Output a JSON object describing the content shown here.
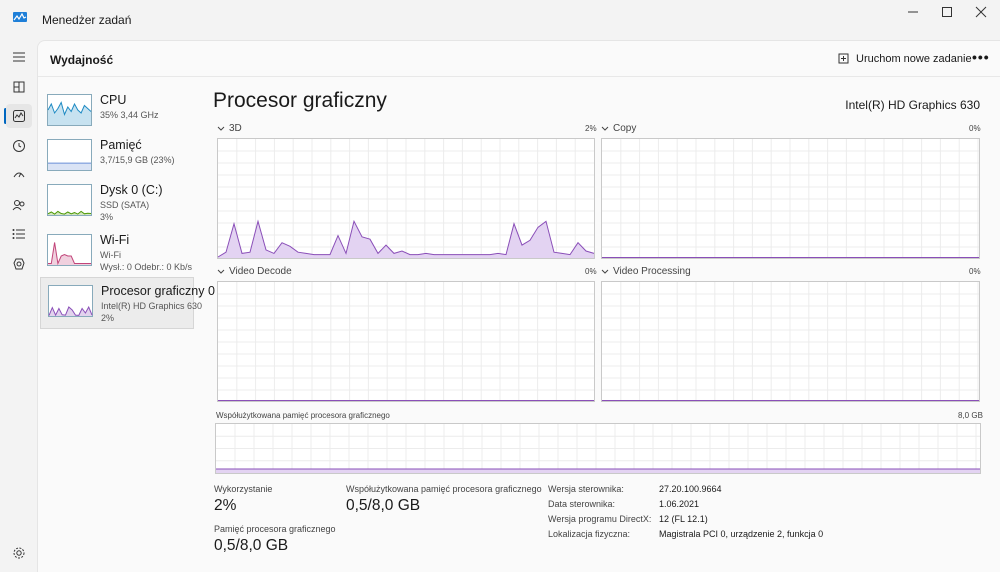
{
  "window": {
    "title": "Menedżer zadań",
    "minimize_glyph": "─",
    "maximize_glyph": "☐",
    "close_glyph": "✕"
  },
  "rail": {
    "items": [
      {
        "icon": "hamburger-menu-icon"
      },
      {
        "icon": "processes-icon"
      },
      {
        "icon": "performance-icon",
        "active": true
      },
      {
        "icon": "app-history-icon"
      },
      {
        "icon": "startup-apps-icon"
      },
      {
        "icon": "users-icon"
      },
      {
        "icon": "details-icon"
      },
      {
        "icon": "services-icon"
      }
    ],
    "settings_icon": "gear-icon"
  },
  "header": {
    "title": "Wydajność",
    "new_task_label": "Uruchom nowe zadanie",
    "more_glyph": "•••"
  },
  "devices": [
    {
      "name": "CPU",
      "line1": "35%  3,44 GHz",
      "line2": "",
      "color": "#1f8bc4"
    },
    {
      "name": "Pamięć",
      "line1": "3,7/15,9 GB (23%)",
      "line2": "",
      "color": "#6a8fd6"
    },
    {
      "name": "Dysk 0 (C:)",
      "line1": "SSD (SATA)",
      "line2": "3%",
      "color": "#4e9a06"
    },
    {
      "name": "Wi-Fi",
      "line1": "Wi-Fi",
      "line2": "Wysł.: 0  Odebr.: 0 Kb/s",
      "color": "#c2457a"
    },
    {
      "name": "Procesor graficzny 0",
      "line1": "Intel(R) HD Graphics 630",
      "line2": "2%",
      "color": "#8a4fb8",
      "selected": true
    }
  ],
  "gpu": {
    "title": "Procesor graficzny",
    "model": "Intel(R) HD Graphics 630",
    "graphs": [
      {
        "label": "3D",
        "percent": "2%"
      },
      {
        "label": "Copy",
        "percent": "0%"
      },
      {
        "label": "Video Decode",
        "percent": "0%"
      },
      {
        "label": "Video Processing",
        "percent": "0%"
      }
    ],
    "shared_memory_graph": {
      "label": "Współużytkowana pamięć procesora graficznego",
      "max": "8,0 GB"
    },
    "accent": "#8a4fb8",
    "fill": "#e3d3f2",
    "stats": {
      "utilization_label": "Wykorzystanie",
      "utilization_value": "2%",
      "shared_memory_label": "Współużytkowana pamięć procesora graficznego",
      "shared_memory_value": "0,5/8,0 GB",
      "gpu_memory_label": "Pamięć procesora graficznego",
      "gpu_memory_value": "0,5/8,0 GB"
    },
    "properties": [
      {
        "label": "Wersja sterownika:",
        "value": "27.20.100.9664"
      },
      {
        "label": "Data sterownika:",
        "value": "1.06.2021"
      },
      {
        "label": "Wersja programu DirectX:",
        "value": "12 (FL 12.1)"
      },
      {
        "label": "Lokalizacja fizyczna:",
        "value": "Magistrala PCI 0, urządzenie 2, funkcja 0"
      }
    ]
  }
}
